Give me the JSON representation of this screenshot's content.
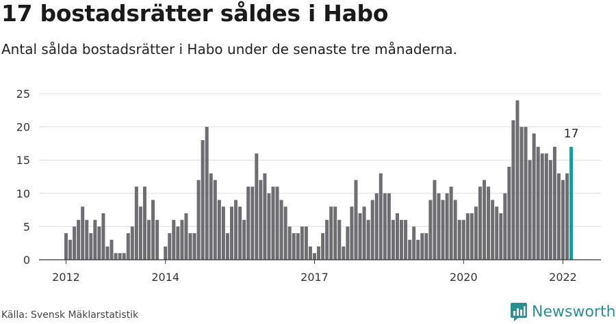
{
  "header": {
    "title": "17 bostadsrätter såldes i Habo",
    "subtitle": "Antal sålda bostadsrätter i Habo under de senaste tre månaderna."
  },
  "footer": {
    "source": "Källa: Svensk Mäklarstatistik",
    "brand": "Newsworthy",
    "brand_color": "#2e8f93"
  },
  "chart_data": {
    "type": "bar",
    "ylim": [
      0,
      25
    ],
    "yticks": [
      0,
      5,
      10,
      15,
      20,
      25
    ],
    "xtick_labels": [
      {
        "label": "2012",
        "index": 0
      },
      {
        "label": "2014",
        "index": 24
      },
      {
        "label": "2017",
        "index": 60
      },
      {
        "label": "2020",
        "index": 96
      },
      {
        "label": "2022",
        "index": 120
      }
    ],
    "grid": true,
    "bar_color": "#6e6d72",
    "highlight_color": "#1a9a9c",
    "highlight_index": 122,
    "highlight_label": "17",
    "values": [
      4,
      3,
      5,
      6,
      8,
      6,
      4,
      6,
      5,
      7,
      2,
      3,
      1,
      1,
      1,
      4,
      5,
      11,
      8,
      11,
      6,
      9,
      6,
      0,
      2,
      4,
      6,
      5,
      6,
      7,
      4,
      4,
      12,
      18,
      20,
      13,
      12,
      9,
      8,
      4,
      8,
      9,
      8,
      6,
      11,
      11,
      16,
      12,
      13,
      10,
      11,
      11,
      9,
      8,
      5,
      4,
      4,
      5,
      5,
      2,
      1,
      2,
      4,
      6,
      8,
      8,
      6,
      2,
      5,
      8,
      12,
      7,
      8,
      6,
      9,
      10,
      13,
      10,
      10,
      6,
      7,
      6,
      6,
      3,
      5,
      3,
      4,
      4,
      9,
      12,
      10,
      9,
      10,
      11,
      9,
      6,
      6,
      7,
      7,
      8,
      11,
      12,
      11,
      9,
      8,
      7,
      10,
      14,
      21,
      24,
      20,
      20,
      15,
      19,
      17,
      16,
      16,
      15,
      17,
      13,
      12,
      13,
      17
    ]
  }
}
